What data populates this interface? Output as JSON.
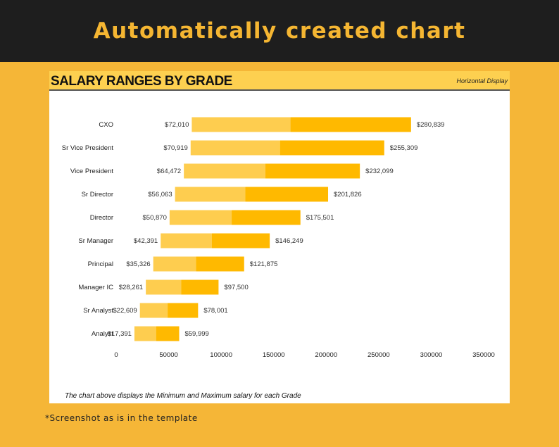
{
  "header": {
    "title": "Automatically created chart"
  },
  "card": {
    "title": "SALARY RANGES BY GRADE",
    "display_mode": "Horizontal Display",
    "caption": "The chart above displays the Minimum and Maximum salary for each Grade"
  },
  "footnote": "*Screenshot as is in the template",
  "chart_data": {
    "type": "bar",
    "orientation": "horizontal",
    "title": "SALARY RANGES BY GRADE",
    "categories": [
      "CXO",
      "Sr Vice President",
      "Vice President",
      "Sr Director",
      "Director",
      "Sr Manager",
      "Principal",
      "Manager IC",
      "Sr Analyst",
      "Analyst"
    ],
    "min": [
      72010,
      70919,
      64472,
      56063,
      50870,
      42391,
      35326,
      28261,
      22609,
      17391
    ],
    "split": [
      166000,
      156000,
      142000,
      123000,
      110000,
      91000,
      76000,
      62000,
      49000,
      38000
    ],
    "max": [
      280839,
      255309,
      232099,
      201826,
      175501,
      146249,
      121875,
      97500,
      78001,
      59999
    ],
    "min_labels": [
      "$72,010",
      "$70,919",
      "$64,472",
      "$56,063",
      "$50,870",
      "$42,391",
      "$35,326",
      "$28,261",
      "$22,609",
      "$17,391"
    ],
    "max_labels": [
      "$280,839",
      "$255,309",
      "$232,099",
      "$201,826",
      "$175,501",
      "$146,249",
      "$121,875",
      "$97,500",
      "$78,001",
      "$59,999"
    ],
    "xlim": [
      0,
      350000
    ],
    "xticks": [
      "0",
      "50000",
      "100000",
      "150000",
      "200000",
      "250000",
      "300000",
      "350000"
    ],
    "colors": {
      "lower": "#fecd4f",
      "upper": "#ffb900"
    }
  }
}
